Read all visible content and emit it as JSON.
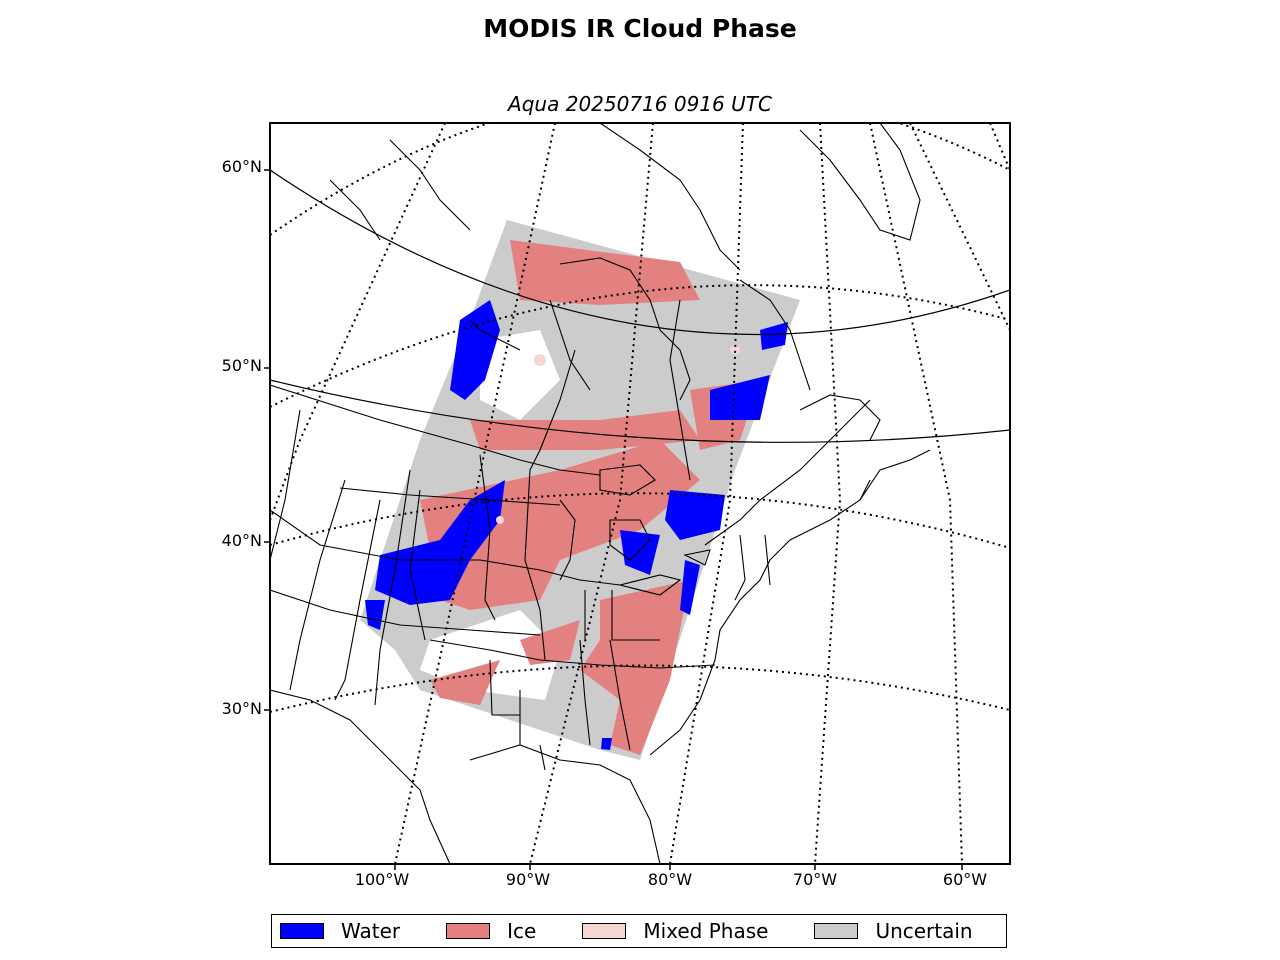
{
  "title": "MODIS IR Cloud Phase",
  "subtitle": "Aqua 20250716 0916 UTC",
  "lat_labels": [
    "60°N",
    "50°N",
    "40°N",
    "30°N"
  ],
  "lon_labels": [
    "100°W",
    "90°W",
    "80°W",
    "70°W",
    "60°W"
  ],
  "legend": [
    {
      "label": "Water",
      "color": "#0000ff"
    },
    {
      "label": "Ice",
      "color": "#e38080"
    },
    {
      "label": "Mixed Phase",
      "color": "#f7d7d4"
    },
    {
      "label": "Uncertain",
      "color": "#cccccc"
    }
  ]
}
